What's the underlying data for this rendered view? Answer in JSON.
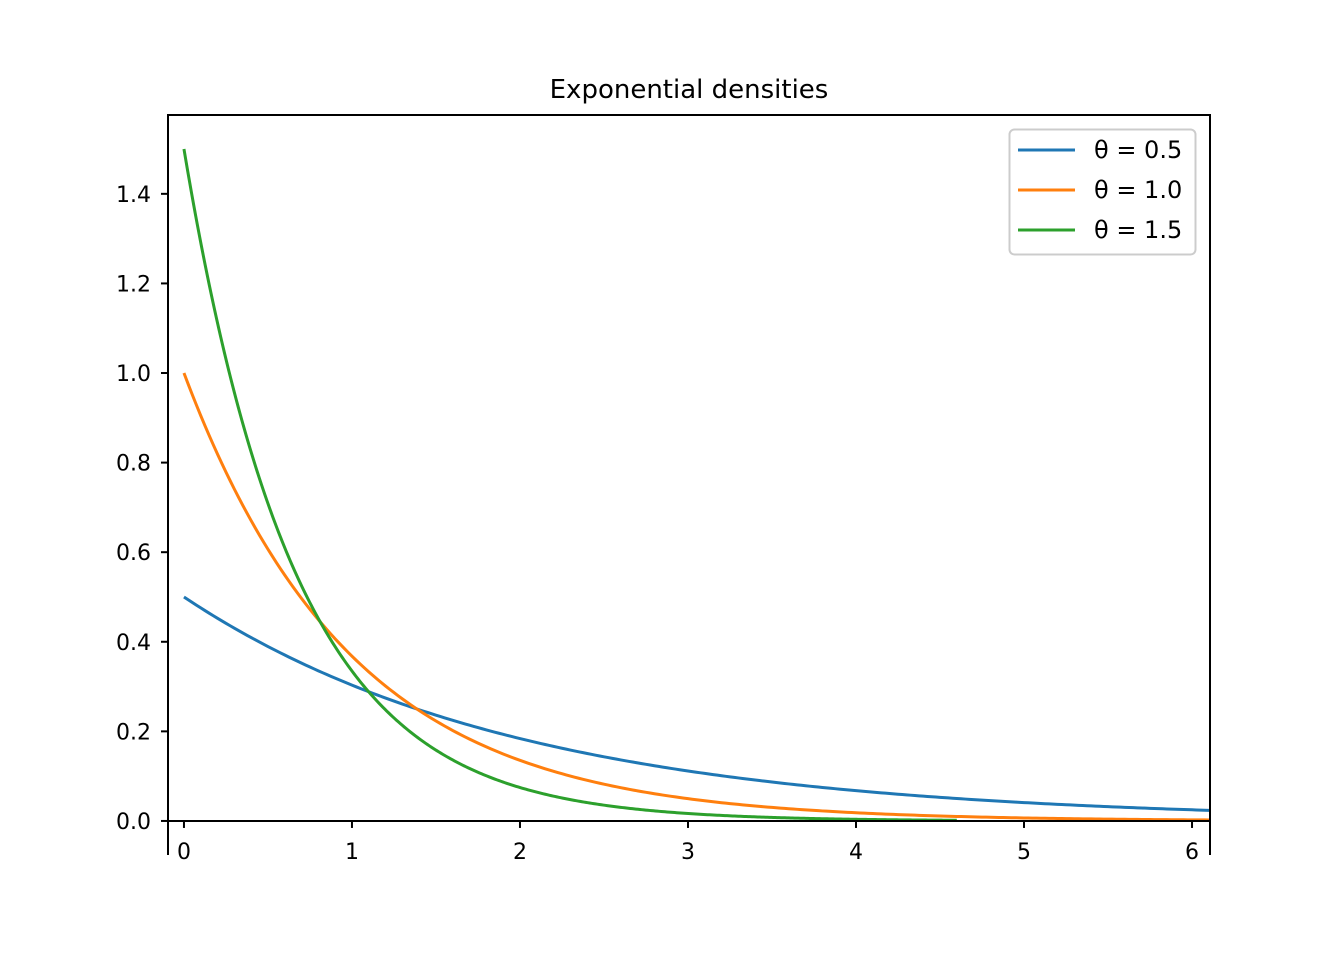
{
  "chart_data": {
    "type": "line",
    "title": "Exponential densities",
    "xlabel": "",
    "ylabel": "",
    "xlim": [
      -0.095,
      6.107
    ],
    "ylim": [
      -0.076,
      1.576
    ],
    "grid": false,
    "legend_position": "top-right",
    "x_ticks": [
      "0",
      "1",
      "2",
      "3",
      "4",
      "5",
      "6"
    ],
    "y_ticks": [
      "0.0",
      "0.2",
      "0.4",
      "0.6",
      "0.8",
      "1.0",
      "1.2",
      "1.4"
    ],
    "series": [
      {
        "name": "θ = 0.5",
        "theta": 0.5,
        "formula": "theta*exp(-theta*x)",
        "x_range": [
          0,
          10
        ],
        "color": "#1f77b4",
        "points": [
          [
            0,
            0.5
          ],
          [
            1,
            0.303
          ],
          [
            2,
            0.184
          ],
          [
            3,
            0.112
          ],
          [
            4,
            0.068
          ],
          [
            5,
            0.041
          ],
          [
            6,
            0.025
          ]
        ]
      },
      {
        "name": "θ = 1.0",
        "theta": 1.0,
        "formula": "theta*exp(-theta*x)",
        "x_range": [
          0,
          10
        ],
        "color": "#ff7f0e",
        "points": [
          [
            0,
            1.0
          ],
          [
            1,
            0.368
          ],
          [
            2,
            0.135
          ],
          [
            3,
            0.05
          ],
          [
            4,
            0.018
          ],
          [
            5,
            0.007
          ],
          [
            6,
            0.002
          ]
        ]
      },
      {
        "name": "θ = 1.5",
        "theta": 1.5,
        "formula": "theta*exp(-theta*x)",
        "x_range": [
          0,
          4.6
        ],
        "color": "#2ca02c",
        "points": [
          [
            0,
            1.5
          ],
          [
            1,
            0.335
          ],
          [
            2,
            0.075
          ],
          [
            3,
            0.017
          ],
          [
            4,
            0.004
          ],
          [
            4.6,
            0.0015
          ]
        ]
      }
    ]
  }
}
